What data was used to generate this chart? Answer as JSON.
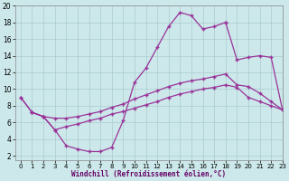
{
  "xlabel": "Windchill (Refroidissement éolien,°C)",
  "background_color": "#cce8ea",
  "grid_color": "#aacccc",
  "line_color": "#993399",
  "xlim": [
    -0.5,
    23
  ],
  "ylim": [
    1.5,
    20
  ],
  "xticks": [
    0,
    1,
    2,
    3,
    4,
    5,
    6,
    7,
    8,
    9,
    10,
    11,
    12,
    13,
    14,
    15,
    16,
    17,
    18,
    19,
    20,
    21,
    22,
    23
  ],
  "yticks": [
    2,
    4,
    6,
    8,
    10,
    12,
    14,
    16,
    18,
    20
  ],
  "line1_x": [
    0,
    1,
    2,
    3,
    4,
    5,
    6,
    7,
    8,
    9,
    10,
    11,
    12,
    13,
    14,
    15,
    16,
    17,
    18
  ],
  "line1_y": [
    9.0,
    7.2,
    6.7,
    5.1,
    3.2,
    2.8,
    2.5,
    2.5,
    3.0,
    6.2,
    10.8,
    12.5,
    15.0,
    17.5,
    19.2,
    18.8,
    17.2,
    17.5,
    18.0
  ],
  "line2_x": [
    18,
    19,
    20,
    21,
    22,
    23
  ],
  "line2_y": [
    18.0,
    13.5,
    13.8,
    14.0,
    13.8,
    7.5
  ],
  "line3_x": [
    0,
    1,
    2,
    3,
    4,
    5,
    6,
    7,
    8,
    9,
    10,
    11,
    12,
    13,
    14,
    15,
    16,
    17,
    18,
    19,
    20,
    21,
    22,
    23
  ],
  "line3_y": [
    9.0,
    7.2,
    6.7,
    6.5,
    6.5,
    6.7,
    7.0,
    7.3,
    7.8,
    8.2,
    8.8,
    9.3,
    9.8,
    10.3,
    10.7,
    11.0,
    11.2,
    11.5,
    11.8,
    10.5,
    10.3,
    9.5,
    8.5,
    7.5
  ],
  "line4_x": [
    1,
    2,
    3,
    4,
    5,
    6,
    7,
    8,
    9,
    10,
    11,
    12,
    13,
    14,
    15,
    16,
    17,
    18,
    19,
    20,
    21,
    22,
    23
  ],
  "line4_y": [
    7.2,
    6.7,
    5.1,
    5.5,
    5.8,
    6.2,
    6.5,
    7.0,
    7.3,
    7.7,
    8.1,
    8.5,
    9.0,
    9.4,
    9.7,
    10.0,
    10.2,
    10.5,
    10.2,
    9.0,
    8.5,
    8.0,
    7.5
  ]
}
